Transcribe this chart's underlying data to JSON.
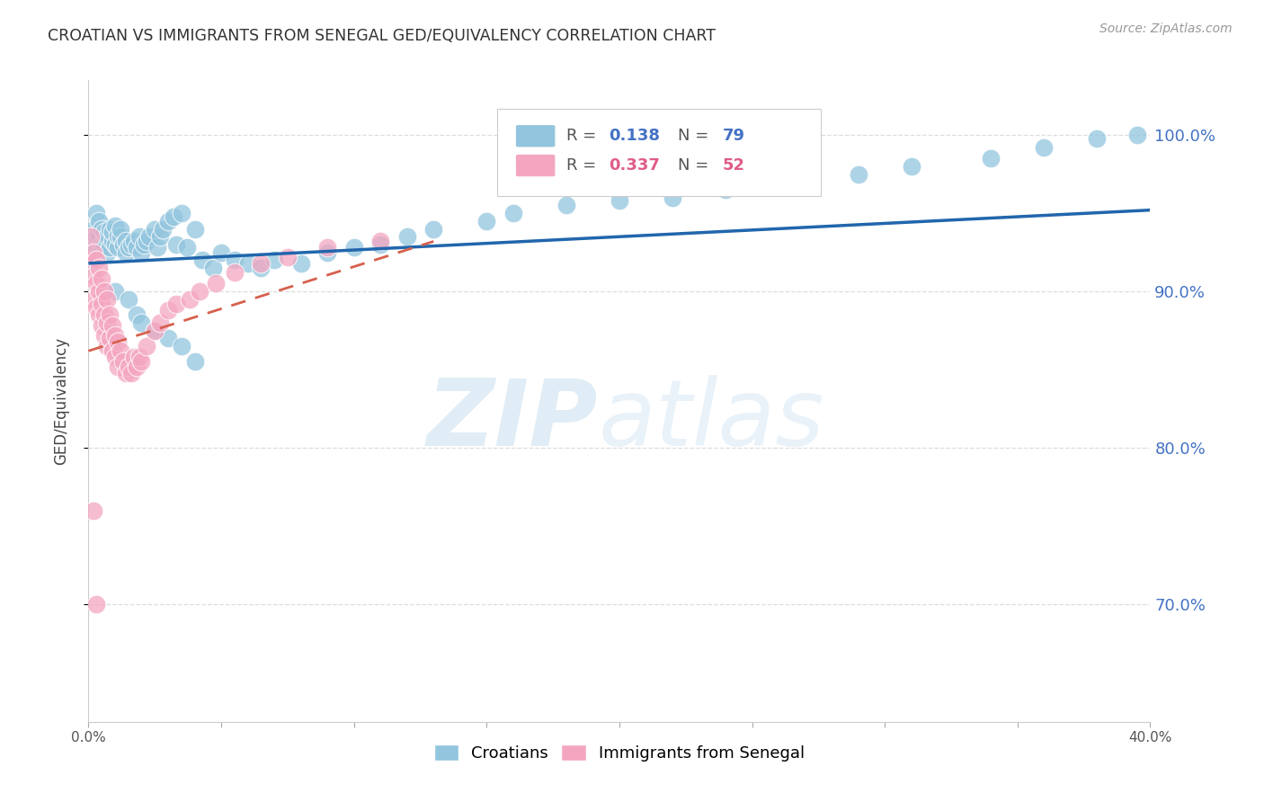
{
  "title": "CROATIAN VS IMMIGRANTS FROM SENEGAL GED/EQUIVALENCY CORRELATION CHART",
  "source": "Source: ZipAtlas.com",
  "ylabel": "GED/Equivalency",
  "xlim": [
    0.0,
    0.4
  ],
  "ylim": [
    0.625,
    1.035
  ],
  "y_tick_positions": [
    0.7,
    0.8,
    0.9,
    1.0
  ],
  "y_tick_labels": [
    "70.0%",
    "80.0%",
    "90.0%",
    "100.0%"
  ],
  "x_tick_positions": [
    0.0,
    0.05,
    0.1,
    0.15,
    0.2,
    0.25,
    0.3,
    0.35,
    0.4
  ],
  "x_tick_labels": [
    "0.0%",
    "",
    "",
    "",
    "",
    "",
    "",
    "",
    "40.0%"
  ],
  "legend_R1": "0.138",
  "legend_N1": "79",
  "legend_R2": "0.337",
  "legend_N2": "52",
  "croatian_color": "#92c5de",
  "senegal_color": "#f4a6c0",
  "croatian_line_color": "#2166ac",
  "senegal_line_color": "#d6604d",
  "grid_color": "#dddddd",
  "croatian_scatter": {
    "x": [
      0.001,
      0.002,
      0.003,
      0.003,
      0.004,
      0.004,
      0.005,
      0.005,
      0.006,
      0.006,
      0.007,
      0.007,
      0.008,
      0.008,
      0.009,
      0.009,
      0.01,
      0.01,
      0.011,
      0.011,
      0.012,
      0.012,
      0.013,
      0.014,
      0.014,
      0.015,
      0.016,
      0.017,
      0.018,
      0.019,
      0.02,
      0.021,
      0.022,
      0.023,
      0.025,
      0.026,
      0.027,
      0.028,
      0.03,
      0.032,
      0.033,
      0.035,
      0.037,
      0.04,
      0.043,
      0.047,
      0.05,
      0.055,
      0.06,
      0.065,
      0.07,
      0.08,
      0.09,
      0.1,
      0.11,
      0.12,
      0.13,
      0.15,
      0.16,
      0.18,
      0.2,
      0.22,
      0.24,
      0.26,
      0.27,
      0.29,
      0.31,
      0.34,
      0.36,
      0.38,
      0.395,
      0.01,
      0.015,
      0.018,
      0.02,
      0.025,
      0.03,
      0.035,
      0.04
    ],
    "y": [
      0.93,
      0.94,
      0.935,
      0.95,
      0.935,
      0.945,
      0.93,
      0.94,
      0.93,
      0.938,
      0.935,
      0.925,
      0.928,
      0.94,
      0.932,
      0.938,
      0.93,
      0.942,
      0.928,
      0.936,
      0.935,
      0.94,
      0.93,
      0.932,
      0.925,
      0.928,
      0.93,
      0.932,
      0.928,
      0.935,
      0.925,
      0.93,
      0.932,
      0.935,
      0.94,
      0.928,
      0.935,
      0.94,
      0.945,
      0.948,
      0.93,
      0.95,
      0.928,
      0.94,
      0.92,
      0.915,
      0.925,
      0.92,
      0.918,
      0.915,
      0.92,
      0.918,
      0.925,
      0.928,
      0.93,
      0.935,
      0.94,
      0.945,
      0.95,
      0.955,
      0.958,
      0.96,
      0.965,
      0.968,
      0.97,
      0.975,
      0.98,
      0.985,
      0.992,
      0.998,
      1.0,
      0.9,
      0.895,
      0.885,
      0.88,
      0.875,
      0.87,
      0.865,
      0.855
    ]
  },
  "senegal_scatter": {
    "x": [
      0.001,
      0.001,
      0.002,
      0.002,
      0.002,
      0.003,
      0.003,
      0.003,
      0.004,
      0.004,
      0.004,
      0.005,
      0.005,
      0.005,
      0.006,
      0.006,
      0.006,
      0.007,
      0.007,
      0.007,
      0.008,
      0.008,
      0.009,
      0.009,
      0.01,
      0.01,
      0.011,
      0.011,
      0.012,
      0.013,
      0.014,
      0.015,
      0.016,
      0.017,
      0.018,
      0.019,
      0.02,
      0.022,
      0.025,
      0.027,
      0.03,
      0.033,
      0.038,
      0.042,
      0.048,
      0.055,
      0.065,
      0.075,
      0.09,
      0.11,
      0.002,
      0.003
    ],
    "y": [
      0.935,
      0.92,
      0.925,
      0.91,
      0.895,
      0.92,
      0.905,
      0.89,
      0.915,
      0.9,
      0.885,
      0.908,
      0.892,
      0.878,
      0.9,
      0.885,
      0.872,
      0.895,
      0.88,
      0.865,
      0.885,
      0.87,
      0.878,
      0.862,
      0.872,
      0.858,
      0.868,
      0.852,
      0.862,
      0.855,
      0.848,
      0.852,
      0.848,
      0.858,
      0.852,
      0.858,
      0.855,
      0.865,
      0.875,
      0.88,
      0.888,
      0.892,
      0.895,
      0.9,
      0.905,
      0.912,
      0.918,
      0.922,
      0.928,
      0.932,
      0.76,
      0.7
    ]
  }
}
